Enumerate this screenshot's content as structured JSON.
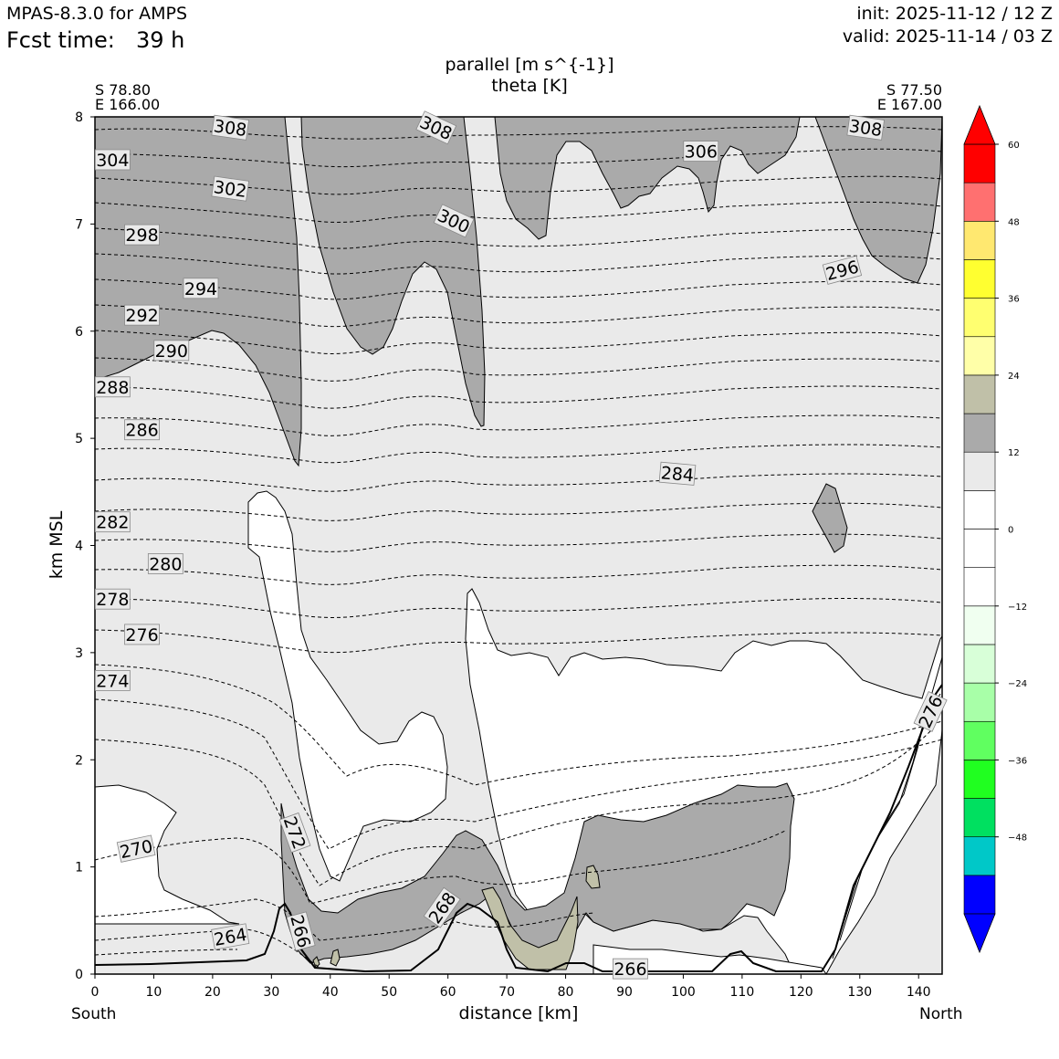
{
  "header": {
    "model": "MPAS-8.3.0 for AMPS",
    "fcst_label": "Fcst time:",
    "fcst_value": "39 h",
    "init": "init: 2025-11-12 / 12 Z",
    "valid": "valid: 2025-11-14 / 03 Z"
  },
  "chart_data": {
    "type": "contour",
    "title_line1": "parallel [m s^{-1}]",
    "title_line2": "theta [K]",
    "left_endpoint": {
      "lat": "S 78.80",
      "lon": "E 166.00",
      "direction": "South"
    },
    "right_endpoint": {
      "lat": "S 77.50",
      "lon": "E 167.00",
      "direction": "North"
    },
    "xlabel": "distance [km]",
    "ylabel": "km MSL",
    "xlim": [
      0,
      144
    ],
    "ylim": [
      0,
      8
    ],
    "x_ticks": [
      0,
      10,
      20,
      30,
      40,
      50,
      60,
      70,
      80,
      90,
      100,
      110,
      120,
      130,
      140
    ],
    "y_ticks": [
      0,
      1,
      2,
      3,
      4,
      5,
      6,
      7,
      8
    ],
    "colorbar": {
      "levels": [
        -60,
        -54,
        -48,
        -42,
        -36,
        -30,
        -24,
        -18,
        -12,
        -6,
        0,
        6,
        12,
        18,
        24,
        30,
        36,
        42,
        48,
        54,
        60
      ],
      "tick_labels": [
        "60",
        "48",
        "36",
        "24",
        "12",
        "0",
        "−12",
        "−24",
        "−36",
        "−48"
      ],
      "tick_values": [
        60,
        48,
        36,
        24,
        12,
        0,
        -12,
        -24,
        -36,
        -48
      ],
      "colors_low_to_high": [
        "#0000ff",
        "#00c8c8",
        "#00e060",
        "#20ff20",
        "#60ff60",
        "#a8ffa8",
        "#d8ffd8",
        "#f0fff0",
        "#ffffff",
        "#ffffff",
        "#eaeaea",
        "#aaaaaa",
        "#c0c0a8",
        "#ffffa8",
        "#ffff70",
        "#ffff30",
        "#ffe870",
        "#ff7070",
        "#ff0000"
      ],
      "under_color": "#0000ff",
      "over_color": "#ff0000"
    },
    "shading": {
      "light_gray_6_12": "#eaeaea",
      "gray_12_18": "#aaaaaa",
      "khaki_18_24": "#c0c0a8",
      "white": "#ffffff"
    },
    "theta_contour_labels": [
      {
        "label": "308",
        "x": 23,
        "z": 7.9,
        "angle": 8
      },
      {
        "label": "308",
        "x": 58,
        "z": 7.9,
        "angle": 25
      },
      {
        "label": "308",
        "x": 131,
        "z": 7.9,
        "angle": 8
      },
      {
        "label": "306",
        "x": 103,
        "z": 7.68,
        "angle": 0
      },
      {
        "label": "304",
        "x": 3,
        "z": 7.6,
        "angle": 0
      },
      {
        "label": "302",
        "x": 23,
        "z": 7.33,
        "angle": 8
      },
      {
        "label": "300",
        "x": 61,
        "z": 7.03,
        "angle": 25
      },
      {
        "label": "298",
        "x": 8,
        "z": 6.9,
        "angle": 0
      },
      {
        "label": "296",
        "x": 127,
        "z": 6.57,
        "angle": -15
      },
      {
        "label": "294",
        "x": 18,
        "z": 6.4,
        "angle": 0
      },
      {
        "label": "292",
        "x": 8,
        "z": 6.15,
        "angle": 0
      },
      {
        "label": "290",
        "x": 13,
        "z": 5.82,
        "angle": 0
      },
      {
        "label": "288",
        "x": 3,
        "z": 5.48,
        "angle": 0
      },
      {
        "label": "286",
        "x": 8,
        "z": 5.08,
        "angle": 0
      },
      {
        "label": "284",
        "x": 99,
        "z": 4.67,
        "angle": 5
      },
      {
        "label": "282",
        "x": 3,
        "z": 4.22,
        "angle": 0
      },
      {
        "label": "280",
        "x": 12,
        "z": 3.83,
        "angle": 0
      },
      {
        "label": "278",
        "x": 3,
        "z": 3.5,
        "angle": 0
      },
      {
        "label": "276",
        "x": 8,
        "z": 3.17,
        "angle": 0
      },
      {
        "label": "276",
        "x": 142,
        "z": 2.45,
        "angle": -65
      },
      {
        "label": "274",
        "x": 3,
        "z": 2.74,
        "angle": 0
      },
      {
        "label": "272",
        "x": 34,
        "z": 1.32,
        "angle": 70
      },
      {
        "label": "270",
        "x": 7,
        "z": 1.17,
        "angle": -12
      },
      {
        "label": "268",
        "x": 59,
        "z": 0.62,
        "angle": -55
      },
      {
        "label": "266",
        "x": 35,
        "z": 0.4,
        "angle": 75
      },
      {
        "label": "266",
        "x": 91,
        "z": 0.05,
        "angle": 0
      },
      {
        "label": "264",
        "x": 23,
        "z": 0.35,
        "angle": -10
      }
    ]
  }
}
